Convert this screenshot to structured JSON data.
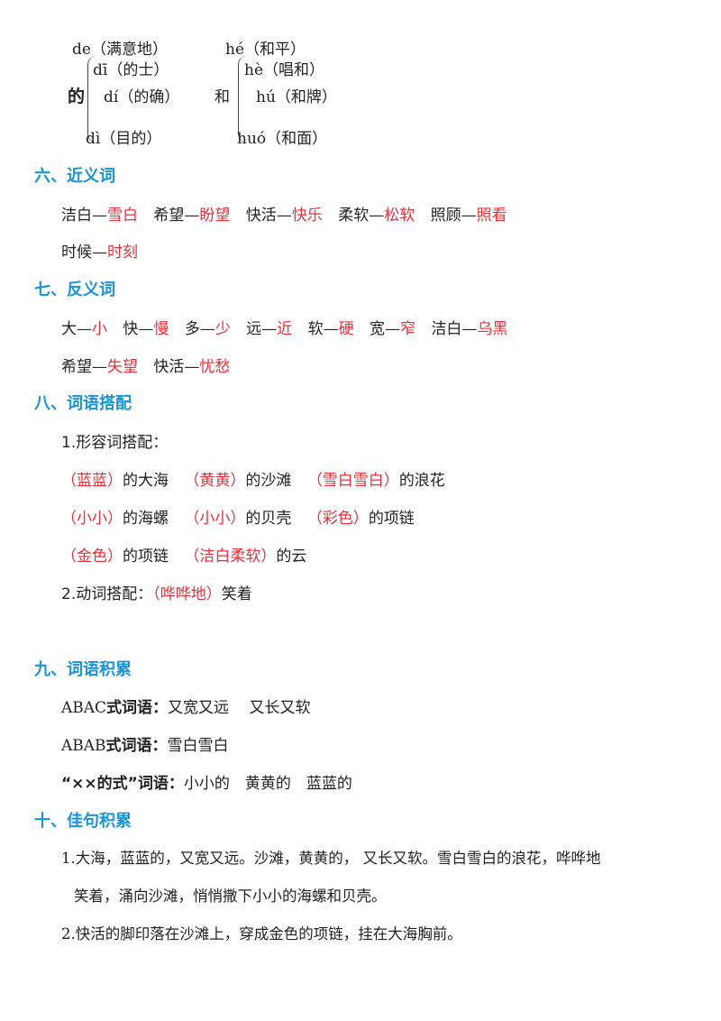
{
  "polyphones": {
    "de": {
      "char": "的",
      "readings": [
        "de（满意地）",
        "dī（的士）",
        "dí（的确）",
        "dì（目的）"
      ]
    },
    "he": {
      "char": "和",
      "readings": [
        "hé（和平）",
        "hè（唱和）",
        "hú（和牌）",
        "huó（和面）"
      ]
    }
  },
  "sections": {
    "synonyms": {
      "heading": "六、近义词",
      "pairs": [
        {
          "a": "洁白—",
          "b": "雪白"
        },
        {
          "a": "希望—",
          "b": "盼望"
        },
        {
          "a": "快活—",
          "b": "快乐"
        },
        {
          "a": "柔软—",
          "b": "松软"
        },
        {
          "a": "照顾—",
          "b": "照看"
        },
        {
          "a": "时候—",
          "b": "时刻"
        }
      ]
    },
    "antonyms": {
      "heading": "七、反义词",
      "pairs": [
        {
          "a": "大—",
          "b": "小"
        },
        {
          "a": "快—",
          "b": "慢"
        },
        {
          "a": "多—",
          "b": "少"
        },
        {
          "a": "远—",
          "b": "近"
        },
        {
          "a": "软—",
          "b": "硬"
        },
        {
          "a": "宽—",
          "b": "窄"
        },
        {
          "a": "洁白—",
          "b": "乌黑"
        },
        {
          "a": "希望—",
          "b": "失望"
        },
        {
          "a": "快活—",
          "b": "忧愁"
        }
      ]
    },
    "collocation": {
      "heading": "八、词语搭配",
      "sub1_label": "1.形容词搭配：",
      "adj": [
        {
          "word": "（蓝蓝）",
          "rest": "的大海"
        },
        {
          "word": "（黄黄）",
          "rest": "的沙滩"
        },
        {
          "word": "（雪白雪白）",
          "rest": "的浪花"
        },
        {
          "word": "（小小）",
          "rest": "的海螺"
        },
        {
          "word": "（小小）",
          "rest": "的贝壳"
        },
        {
          "word": "（彩色）",
          "rest": "的项链"
        },
        {
          "word": "（金色）",
          "rest": "的项链"
        },
        {
          "word": "（洁白柔软）",
          "rest": "的云"
        }
      ],
      "sub2_label": "2.动词搭配：",
      "verb": {
        "word": "（哗哗地）",
        "rest": "笑着"
      }
    },
    "accumulation": {
      "heading": "九、词语积累",
      "items": [
        {
          "label": "ABAC",
          "label_bold": "式词语：",
          "words": "又宽又远　 又长又软"
        },
        {
          "label": "ABAB",
          "label_bold": "式词语：",
          "words": "雪白雪白"
        },
        {
          "label": "",
          "label_bold": "“××的式”词语：",
          "words": "小小的　黄黄的　蓝蓝的"
        }
      ]
    },
    "sentences": {
      "heading": "十、佳句积累",
      "s1_line1": "1.大海，蓝蓝的，又宽又远。沙滩，黄黄的， 又长又软。雪白雪白的浪花，哗哗地",
      "s1_line2": "笑着，涌向沙滩，悄悄撒下小小的海螺和贝壳。",
      "s2": "2.快活的脚印落在沙滩上，穿成金色的项链，挂在大海胸前。"
    }
  }
}
